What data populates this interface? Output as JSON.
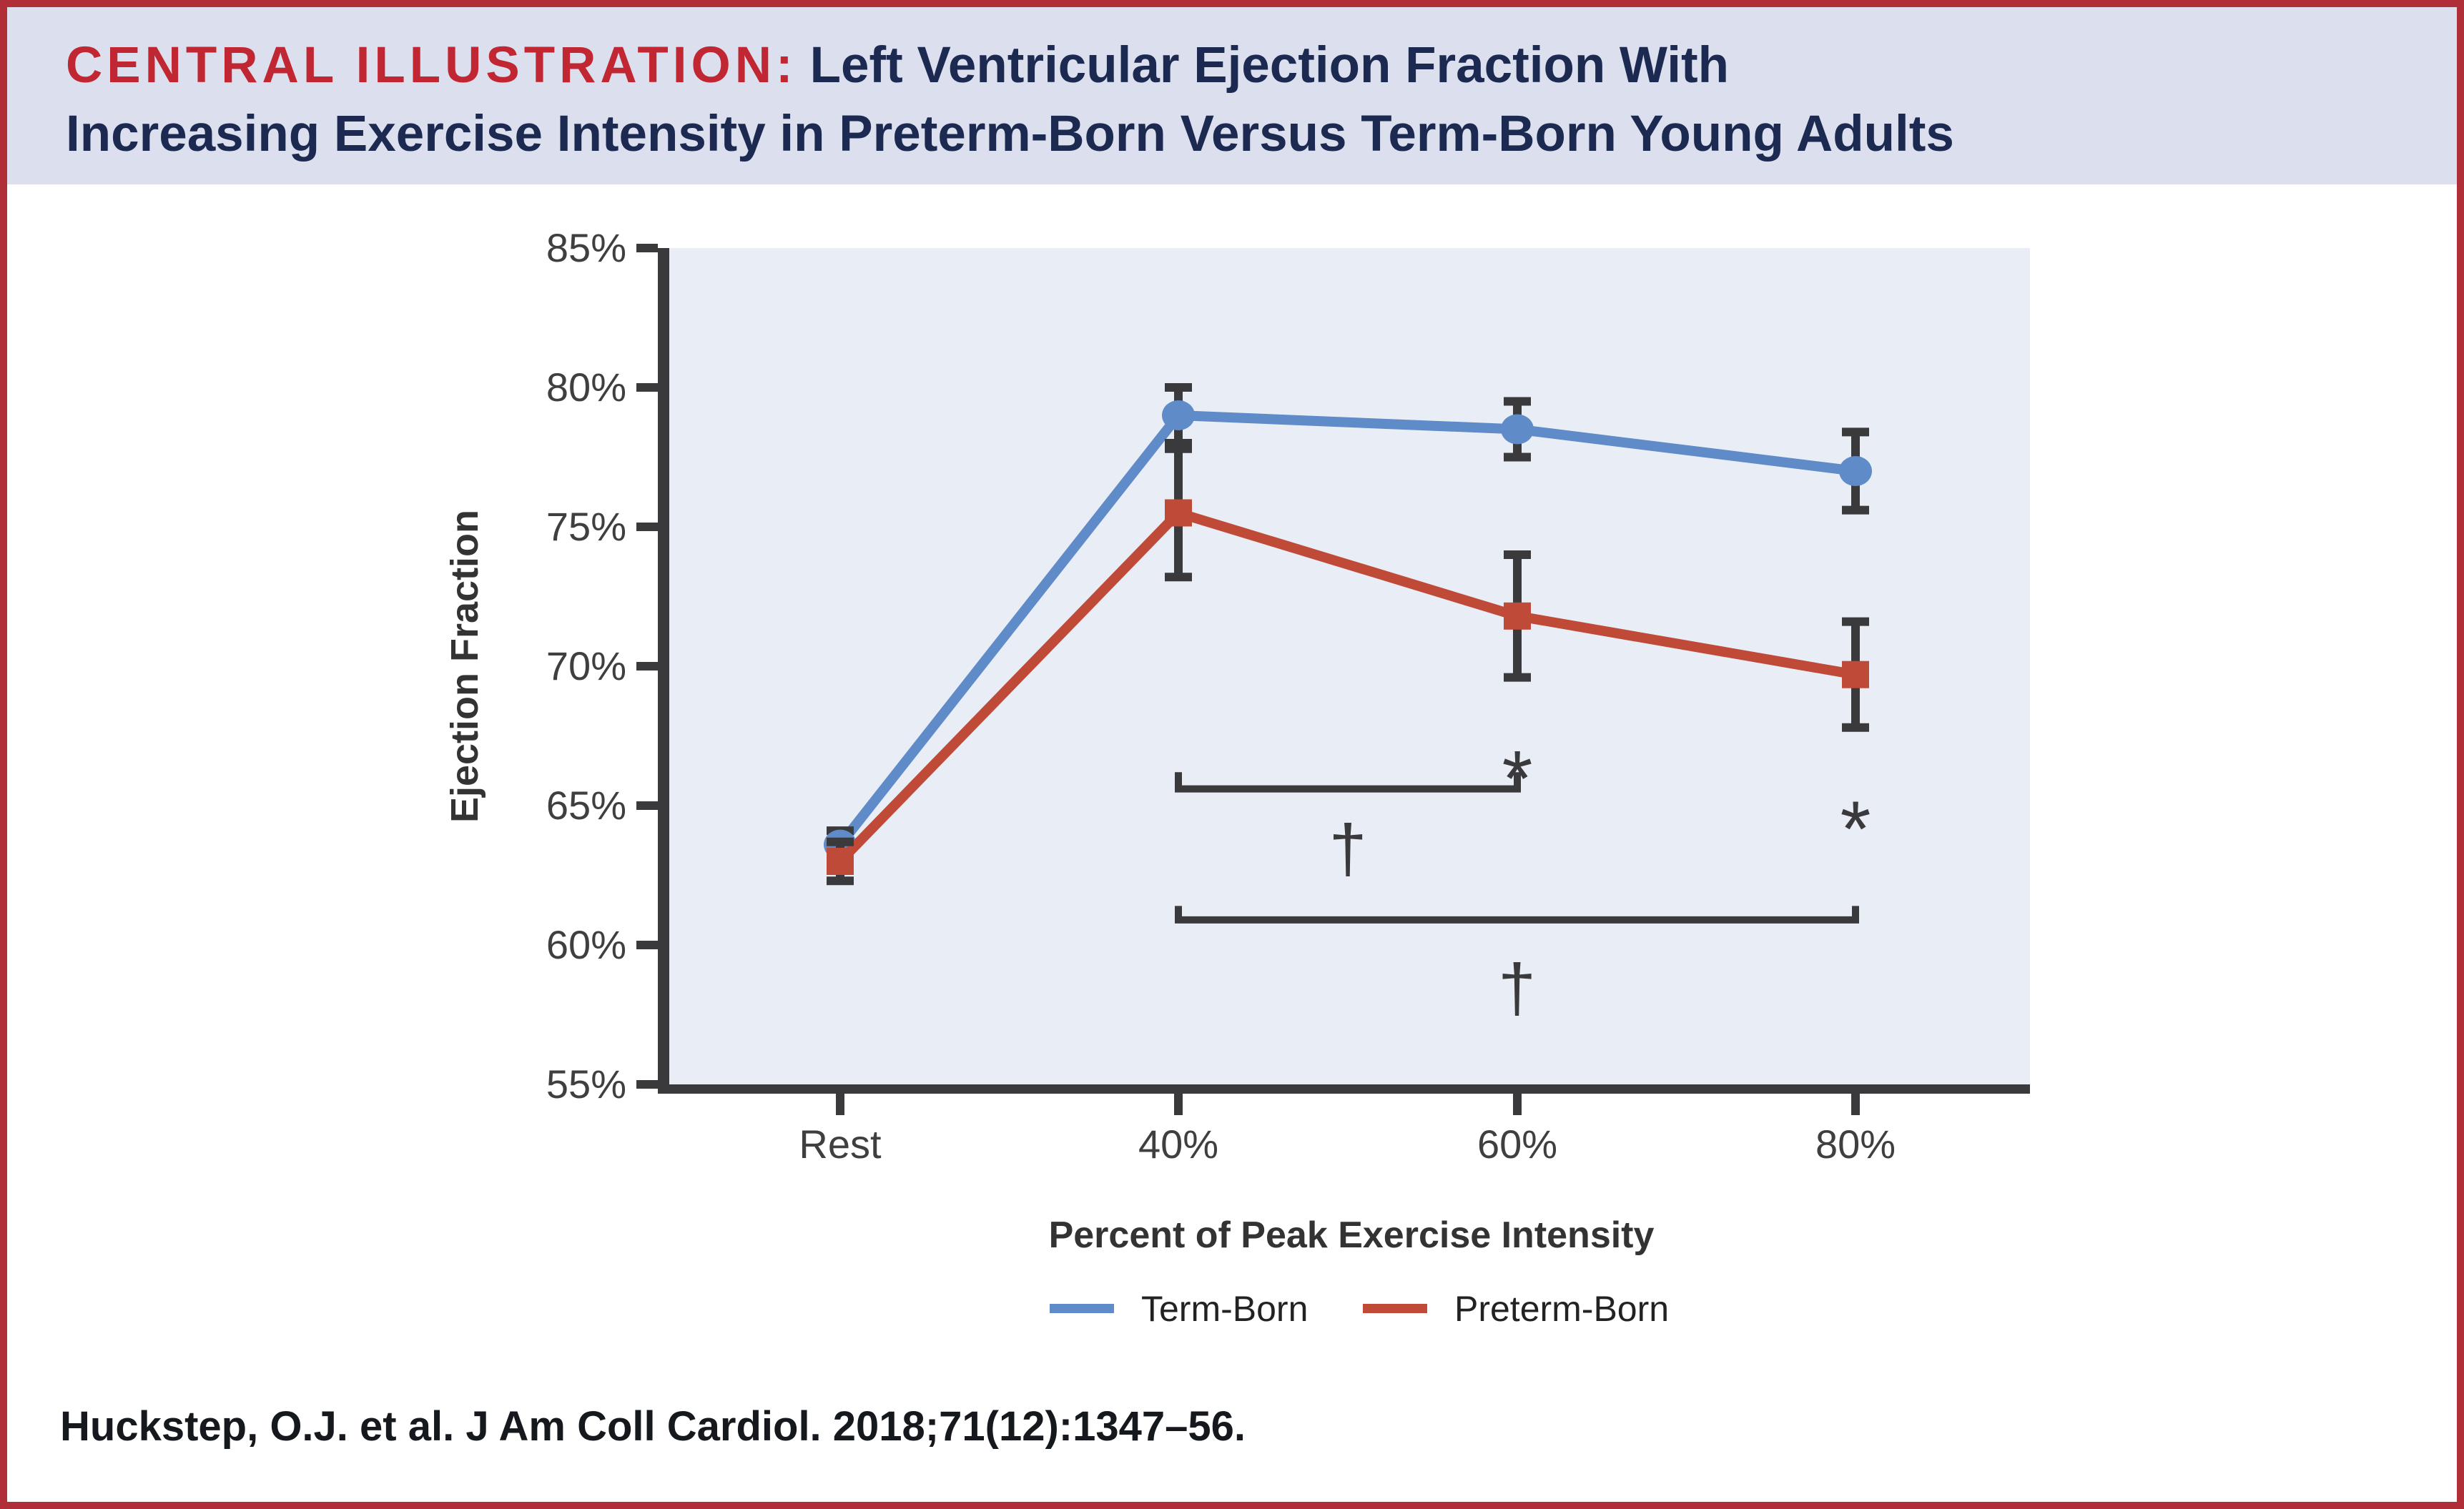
{
  "header": {
    "label": "CENTRAL ILLUSTRATION:",
    "title_line1": "Left Ventricular Ejection Fraction With",
    "title_line2": "Increasing Exercise Intensity in Preterm-Born Versus Term-Born Young Adults"
  },
  "citation": "Huckstep, O.J. et al. J Am Coll Cardiol. 2018;71(12):1347–56.",
  "colors": {
    "border_red": "#b02e38",
    "header_bg": "#dbdfee",
    "header_label_red": "#c12732",
    "header_navy": "#1c2a52",
    "plot_bg": "#e9edf6",
    "axis_dark": "#3a3a3c",
    "term_blue": "#5f8bc9",
    "preterm_red": "#c04a38",
    "tick_text": "#3f3f41"
  },
  "chart_data": {
    "type": "line",
    "title": "Left Ventricular Ejection Fraction With Increasing Exercise Intensity in Preterm-Born Versus Term-Born Young Adults",
    "categories": [
      "Rest",
      "40%",
      "60%",
      "80%"
    ],
    "series": [
      {
        "name": "Term-Born",
        "color": "#5f8bc9",
        "marker": "circle",
        "values": [
          63.6,
          79.0,
          78.5,
          77.0
        ],
        "errors": [
          0.5,
          1.0,
          1.0,
          1.4
        ]
      },
      {
        "name": "Preterm-Born",
        "color": "#c04a38",
        "marker": "square",
        "values": [
          63.0,
          75.5,
          71.8,
          69.7
        ],
        "errors": [
          0.7,
          2.3,
          2.2,
          1.9
        ]
      }
    ],
    "xlabel": "Percent of Peak Exercise Intensity",
    "ylabel": "Ejection Fraction",
    "ylim": [
      55,
      85
    ],
    "yticks": [
      {
        "v": 85,
        "label": "85%"
      },
      {
        "v": 80,
        "label": "80%"
      },
      {
        "v": 75,
        "label": "75%"
      },
      {
        "v": 70,
        "label": "70%"
      },
      {
        "v": 65,
        "label": "65%"
      },
      {
        "v": 60,
        "label": "60%"
      },
      {
        "v": 55,
        "label": "55%"
      }
    ],
    "grid": false,
    "legend_position": "bottom-center",
    "annotations": {
      "asterisks": [
        {
          "symbol": "*",
          "cat": 2,
          "y": 67.1
        },
        {
          "symbol": "*",
          "cat": 3,
          "y": 65.3
        }
      ],
      "brackets": [
        {
          "from_cat": 1,
          "to_cat": 2,
          "y_top": 66.2,
          "y_bot": 65.6
        },
        {
          "from_cat": 1,
          "to_cat": 3,
          "y_top": 61.4,
          "y_bot": 60.9
        }
      ],
      "daggers": [
        {
          "symbol": "†",
          "between": [
            1,
            2
          ],
          "y": 63.5
        },
        {
          "symbol": "†",
          "between": [
            1,
            3
          ],
          "y": 58.5
        }
      ]
    }
  }
}
